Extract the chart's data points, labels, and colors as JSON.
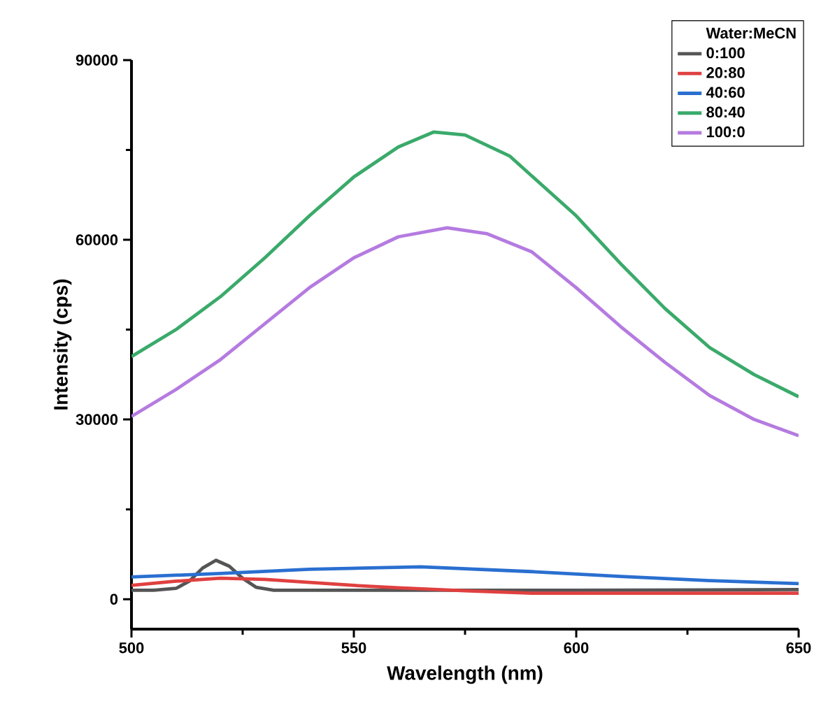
{
  "chart_data": {
    "type": "line",
    "xlabel": "Wavelength (nm)",
    "ylabel": "Intensity (cps)",
    "legend_title": "Water:MeCN",
    "legend": "top right",
    "xlim": [
      500,
      650
    ],
    "ylim": [
      -5000,
      90000
    ],
    "xticks": [
      500,
      550,
      600,
      650
    ],
    "yticks": [
      0,
      30000,
      60000,
      90000
    ],
    "series": [
      {
        "name": "0:100",
        "color": "#555555",
        "x": [
          500,
          505,
          510,
          513,
          516,
          519,
          522,
          525,
          528,
          532,
          550,
          600,
          650
        ],
        "values": [
          1500,
          1500,
          1800,
          3000,
          5200,
          6500,
          5500,
          3500,
          2000,
          1500,
          1500,
          1500,
          1600
        ]
      },
      {
        "name": "20:80",
        "color": "#e04040",
        "x": [
          500,
          510,
          520,
          530,
          540,
          550,
          560,
          575,
          590,
          620,
          650
        ],
        "values": [
          2300,
          3000,
          3500,
          3300,
          2800,
          2300,
          1900,
          1400,
          1000,
          1000,
          1000
        ]
      },
      {
        "name": "40:60",
        "color": "#2a6fd0",
        "x": [
          500,
          520,
          540,
          565,
          590,
          610,
          630,
          650
        ],
        "values": [
          3700,
          4300,
          5000,
          5400,
          4600,
          3800,
          3100,
          2600
        ]
      },
      {
        "name": "80:40",
        "color": "#3aaa6a",
        "x": [
          500,
          510,
          520,
          530,
          540,
          550,
          560,
          568,
          575,
          585,
          600,
          610,
          620,
          630,
          640,
          650
        ],
        "values": [
          40500,
          45000,
          50500,
          57000,
          64000,
          70500,
          75500,
          78000,
          77500,
          74000,
          64000,
          56000,
          48500,
          42000,
          37500,
          33800
        ]
      },
      {
        "name": "100:0",
        "color": "#b57be0",
        "x": [
          500,
          510,
          520,
          530,
          540,
          550,
          560,
          571,
          580,
          590,
          600,
          610,
          620,
          630,
          640,
          650
        ],
        "values": [
          30500,
          35000,
          40000,
          46000,
          52000,
          57000,
          60500,
          62000,
          61000,
          58000,
          52000,
          45500,
          39500,
          34000,
          30000,
          27300
        ]
      }
    ]
  }
}
